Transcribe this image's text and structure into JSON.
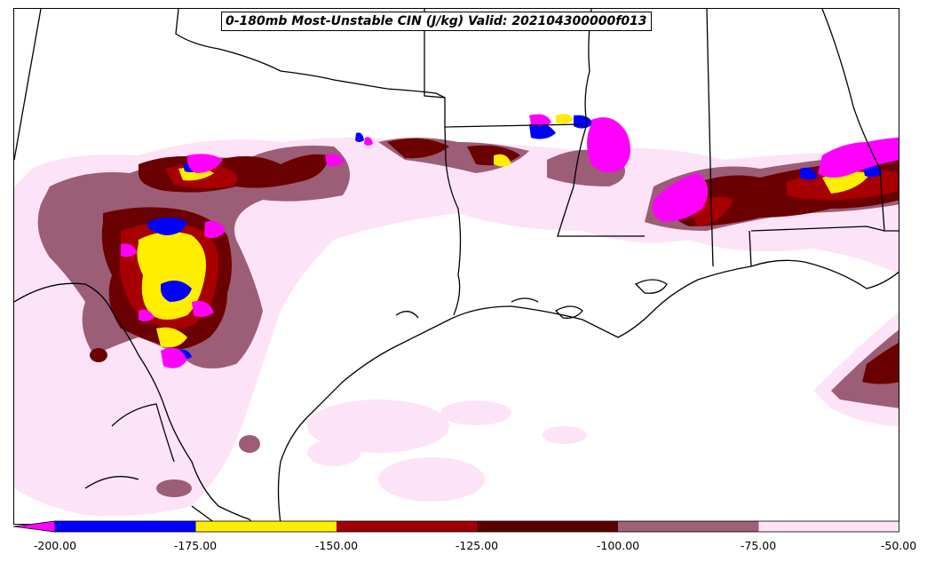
{
  "title": "0-180mb Most-Unstable CIN (J/kg) Valid: 202104300000f013",
  "legend": {
    "ticks": [
      "-200.00",
      "-175.00",
      "-150.00",
      "-125.00",
      "-100.00",
      "-75.00",
      "-50.00"
    ],
    "colors": [
      "#ff00ff",
      "#0000ff",
      "#ffee00",
      "#a00000",
      "#5a0000",
      "#a06078",
      "#ffe4f8"
    ]
  },
  "colors": {
    "lightest": "#fde3f7",
    "mauve": "#9c5d76",
    "dark_red": "#6b0000",
    "red": "#a80000",
    "yellow": "#ffee00",
    "blue": "#0000ff",
    "magenta": "#ff00ff"
  }
}
